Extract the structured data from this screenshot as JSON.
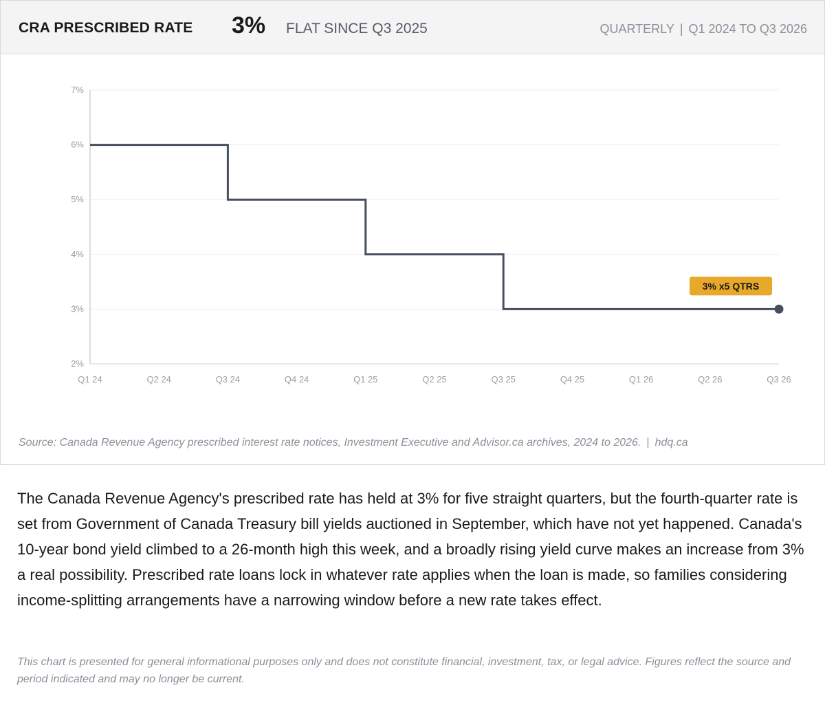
{
  "header": {
    "title": "CRA PRESCRIBED RATE",
    "value": "3%",
    "subtitle": "FLAT SINCE Q3 2025",
    "frequency": "QUARTERLY",
    "separator": "|",
    "period": "Q1 2024 TO Q3 2026"
  },
  "chart_data": {
    "type": "line",
    "step": true,
    "categories": [
      "Q1 24",
      "Q2 24",
      "Q3 24",
      "Q4 24",
      "Q1 25",
      "Q2 25",
      "Q3 25",
      "Q4 25",
      "Q1 26",
      "Q2 26",
      "Q3 26"
    ],
    "values": [
      6,
      6,
      5,
      5,
      4,
      4,
      3,
      3,
      3,
      3,
      3
    ],
    "y_ticks": [
      {
        "value": 2,
        "label": "2%"
      },
      {
        "value": 3,
        "label": "3%"
      },
      {
        "value": 4,
        "label": "4%"
      },
      {
        "value": 5,
        "label": "5%"
      },
      {
        "value": 6,
        "label": "6%"
      },
      {
        "value": 7,
        "label": "7%"
      }
    ],
    "ylim": [
      2,
      7
    ],
    "grid": true,
    "line_color": "#474f5c",
    "annotation": {
      "text": "3% x5 QTRS",
      "category": "Q3 26",
      "color": "#e8a82a"
    }
  },
  "source": {
    "text": "Source: Canada Revenue Agency prescribed interest rate notices, Investment Executive and Advisor.ca archives, 2024 to 2026.",
    "separator": "|",
    "site": "hdq.ca"
  },
  "body": "The Canada Revenue Agency's prescribed rate has held at 3% for five straight quarters, but the fourth-quarter rate is set from Government of Canada Treasury bill yields auctioned in September, which have not yet happened. Canada's 10-year bond yield climbed to a 26-month high this week, and a broadly rising yield curve makes an increase from 3% a real possibility. Prescribed rate loans lock in whatever rate applies when the loan is made, so families considering income-splitting arrangements have a narrowing window before a new rate takes effect.",
  "disclaimer": "This chart is presented for general informational purposes only and does not constitute financial, investment, tax, or legal advice. Figures reflect the source and period indicated and may no longer be current."
}
